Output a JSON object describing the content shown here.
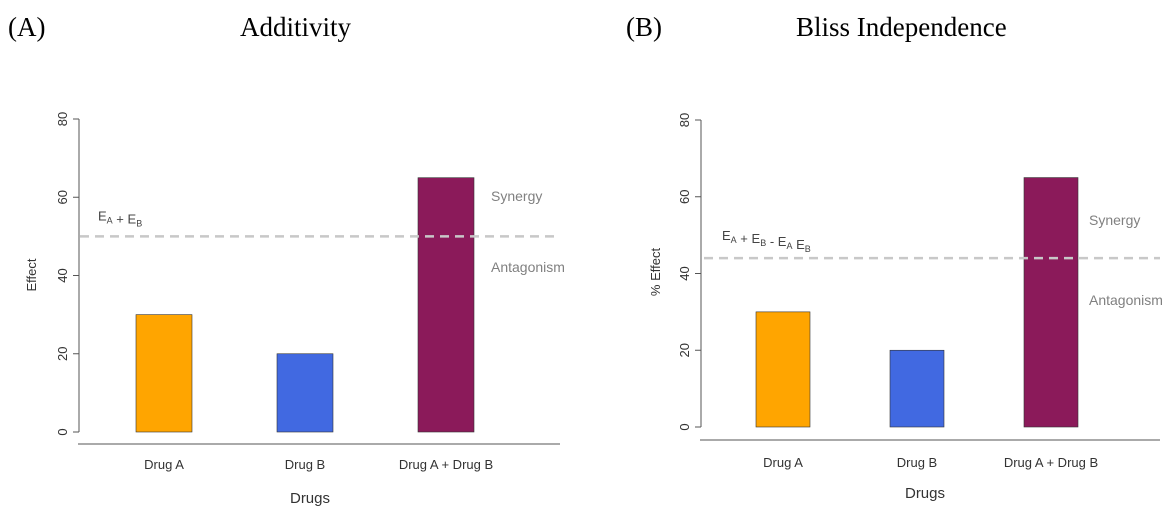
{
  "colors": {
    "drug_a": "#ffa500",
    "drug_b": "#4169e1",
    "combo": "#8b1a5a",
    "reference_line": "#c8c8c8",
    "annotation_text": "#808080",
    "axis": "#555555"
  },
  "chart_data": [
    {
      "panel_label": "(A)",
      "title": "Additivity",
      "type": "bar",
      "categories": [
        "Drug A",
        "Drug B",
        "Drug A + Drug B"
      ],
      "values": [
        30,
        20,
        65
      ],
      "xlabel": "Drugs",
      "ylabel": "Effect",
      "ylim": [
        0,
        80
      ],
      "yticks": [
        "0",
        "20",
        "40",
        "60",
        "80"
      ],
      "reference_line": {
        "value": 50,
        "label": "E<sub>A</sub> + E<sub>B</sub>"
      },
      "annotations": {
        "above": "Synergy",
        "below": "Antagonism"
      }
    },
    {
      "panel_label": "(B)",
      "title": "Bliss Independence",
      "type": "bar",
      "categories": [
        "Drug A",
        "Drug B",
        "Drug A + Drug B"
      ],
      "values": [
        30,
        20,
        65
      ],
      "xlabel": "Drugs",
      "ylabel": "% Effect",
      "ylim": [
        0,
        80
      ],
      "yticks": [
        "0",
        "20",
        "40",
        "60",
        "80"
      ],
      "reference_line": {
        "value": 44,
        "label": "E<sub>A</sub> + E<sub>B</sub> - E<sub>A</sub> E<sub>B</sub>"
      },
      "annotations": {
        "above": "Synergy",
        "below": "Antagonism"
      }
    }
  ]
}
